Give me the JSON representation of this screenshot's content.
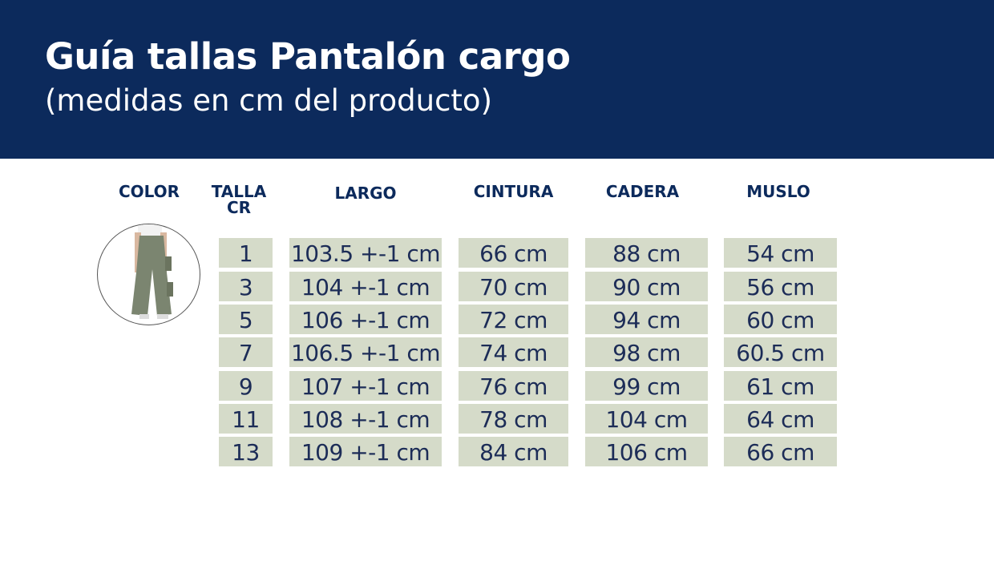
{
  "header": {
    "title": "Guía tallas Pantalón cargo",
    "subtitle": "(medidas en cm del producto)",
    "background": "#0c2a5c"
  },
  "table": {
    "columns": [
      "COLOR",
      "TALLA CR",
      "LARGO",
      "CINTURA",
      "CADERA",
      "MUSLO"
    ],
    "color_image": "olive-green cargo pants photo",
    "rows": [
      {
        "talla": "1",
        "largo": "103.5 +-1 cm",
        "cintura": "66 cm",
        "cadera": "88 cm",
        "muslo": "54 cm"
      },
      {
        "talla": "3",
        "largo": "104 +-1 cm",
        "cintura": "70 cm",
        "cadera": "90 cm",
        "muslo": "56 cm"
      },
      {
        "talla": "5",
        "largo": "106 +-1 cm",
        "cintura": "72 cm",
        "cadera": "94 cm",
        "muslo": "60 cm"
      },
      {
        "talla": "7",
        "largo": "106.5 +-1 cm",
        "cintura": "74 cm",
        "cadera": "98 cm",
        "muslo": "60.5 cm"
      },
      {
        "talla": "9",
        "largo": "107 +-1 cm",
        "cintura": "76 cm",
        "cadera": "99 cm",
        "muslo": "61 cm"
      },
      {
        "talla": "11",
        "largo": "108 +-1 cm",
        "cintura": "78 cm",
        "cadera": "104 cm",
        "muslo": "64 cm"
      },
      {
        "talla": "13",
        "largo": "109 +-1 cm",
        "cintura": "84 cm",
        "cadera": "106 cm",
        "muslo": "66 cm"
      }
    ],
    "cell_color": "#d5dbc9"
  }
}
